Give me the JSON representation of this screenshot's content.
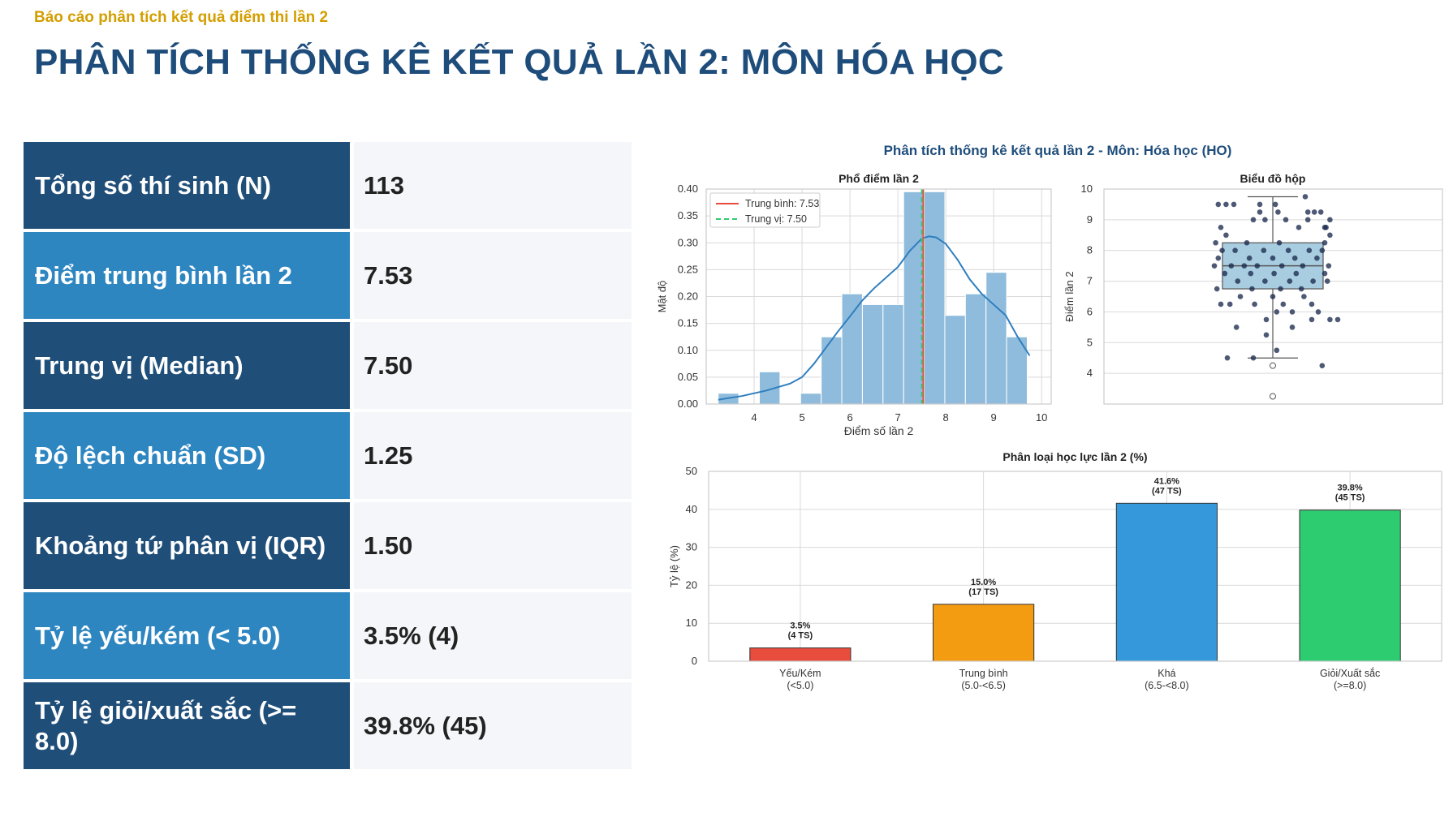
{
  "header": {
    "subtitle": "Báo cáo phân tích kết quả điểm thi lần 2",
    "title": "PHÂN TÍCH THỐNG KÊ KẾT QUẢ LẦN 2: MÔN HÓA HỌC"
  },
  "stats": [
    {
      "label": "Tổng số thí sinh (N)",
      "value": "113"
    },
    {
      "label": "Điểm trung bình lần 2",
      "value": "7.53"
    },
    {
      "label": "Trung vị (Median)",
      "value": "7.50"
    },
    {
      "label": "Độ lệch chuẩn (SD)",
      "value": "1.25"
    },
    {
      "label": "Khoảng tứ phân vị (IQR)",
      "value": "1.50"
    },
    {
      "label": "Tỷ lệ yếu/kém (< 5.0)",
      "value": "3.5% (4)"
    },
    {
      "label": "Tỷ lệ giỏi/xuất sắc (>= 8.0)",
      "value": "39.8% (45)"
    }
  ],
  "colors": {
    "title": "#1e4d7b",
    "subtitle": "#d39e00",
    "label_dark": "#1f4e79",
    "label_light": "#2e86c1",
    "hist_bar": "#8fbcdc",
    "kde": "#2f7ebf",
    "mean_line": "#e74c3c",
    "median_line": "#2ecc71",
    "box_fill": "#a8cce0",
    "points": "#1b2a4e"
  },
  "figure_title": "Phân tích thống kê kết quả lần 2 - Môn: Hóa học (HO)",
  "chart_data": [
    {
      "type": "histogram",
      "title": "Phổ điểm lần 2",
      "xlabel": "Điểm số lần 2",
      "ylabel": "Mật độ",
      "xlim": [
        3,
        10.2
      ],
      "ylim": [
        0,
        0.4
      ],
      "xticks": [
        4,
        5,
        6,
        7,
        8,
        9,
        10
      ],
      "yticks": [
        0.0,
        0.05,
        0.1,
        0.15,
        0.2,
        0.25,
        0.3,
        0.35,
        0.4
      ],
      "bins": [
        {
          "x0": 3.25,
          "x1": 3.68,
          "density": 0.02
        },
        {
          "x0": 3.68,
          "x1": 4.11,
          "density": 0.0
        },
        {
          "x0": 4.11,
          "x1": 4.54,
          "density": 0.06
        },
        {
          "x0": 4.54,
          "x1": 4.97,
          "density": 0.0
        },
        {
          "x0": 4.97,
          "x1": 5.4,
          "density": 0.02
        },
        {
          "x0": 5.4,
          "x1": 5.83,
          "density": 0.125
        },
        {
          "x0": 5.83,
          "x1": 6.26,
          "density": 0.205
        },
        {
          "x0": 6.26,
          "x1": 6.69,
          "density": 0.185
        },
        {
          "x0": 6.69,
          "x1": 7.12,
          "density": 0.185
        },
        {
          "x0": 7.12,
          "x1": 7.55,
          "density": 0.395
        },
        {
          "x0": 7.55,
          "x1": 7.98,
          "density": 0.395
        },
        {
          "x0": 7.98,
          "x1": 8.41,
          "density": 0.165
        },
        {
          "x0": 8.41,
          "x1": 8.84,
          "density": 0.205
        },
        {
          "x0": 8.84,
          "x1": 9.27,
          "density": 0.245
        },
        {
          "x0": 9.27,
          "x1": 9.7,
          "density": 0.125
        }
      ],
      "kde": {
        "x": [
          3.25,
          3.75,
          4.25,
          4.75,
          5.0,
          5.25,
          5.5,
          5.75,
          6.0,
          6.25,
          6.5,
          6.75,
          7.0,
          7.25,
          7.5,
          7.65,
          7.8,
          8.0,
          8.25,
          8.5,
          8.75,
          9.0,
          9.25,
          9.5,
          9.75
        ],
        "y": [
          0.008,
          0.015,
          0.025,
          0.038,
          0.05,
          0.075,
          0.105,
          0.135,
          0.163,
          0.192,
          0.215,
          0.235,
          0.255,
          0.285,
          0.308,
          0.312,
          0.31,
          0.298,
          0.268,
          0.232,
          0.205,
          0.185,
          0.165,
          0.125,
          0.09
        ]
      },
      "lines": [
        {
          "name": "Trung bình: 7.53",
          "x": 7.53,
          "color": "#e74c3c",
          "dash": false
        },
        {
          "name": "Trung vị: 7.50",
          "x": 7.5,
          "color": "#2ecc71",
          "dash": true
        }
      ],
      "legend": "top-left",
      "grid": true
    },
    {
      "type": "box",
      "title": "Biểu đồ hộp",
      "ylabel": "Điểm lần 2",
      "ylim": [
        3.0,
        10.0
      ],
      "yticks": [
        4,
        5,
        6,
        7,
        8,
        9,
        10
      ],
      "q1": 6.75,
      "median": 7.5,
      "q3": 8.25,
      "whisker_low": 4.5,
      "whisker_high": 9.75,
      "outliers": [
        4.25,
        3.25
      ],
      "points": [
        [
          -0.42,
          9.5
        ],
        [
          -0.36,
          9.5
        ],
        [
          -0.3,
          9.5
        ],
        [
          -0.1,
          9.25
        ],
        [
          0.04,
          9.25
        ],
        [
          0.32,
          9.25
        ],
        [
          0.27,
          9.25
        ],
        [
          0.37,
          9.25
        ],
        [
          -0.15,
          9.0
        ],
        [
          -0.06,
          9.0
        ],
        [
          0.1,
          9.0
        ],
        [
          0.27,
          9.0
        ],
        [
          0.44,
          9.0
        ],
        [
          0.25,
          9.75
        ],
        [
          0.02,
          9.5
        ],
        [
          -0.4,
          8.75
        ],
        [
          0.2,
          8.75
        ],
        [
          0.41,
          8.75
        ],
        [
          0.44,
          8.5
        ],
        [
          -0.36,
          8.5
        ],
        [
          0.4,
          8.25
        ],
        [
          -0.2,
          8.25
        ],
        [
          0.05,
          8.25
        ],
        [
          -0.44,
          8.25
        ],
        [
          -0.29,
          8.0
        ],
        [
          -0.07,
          8.0
        ],
        [
          0.12,
          8.0
        ],
        [
          0.28,
          8.0
        ],
        [
          -0.39,
          8.0
        ],
        [
          0.38,
          8.0
        ],
        [
          -0.42,
          7.75
        ],
        [
          -0.18,
          7.75
        ],
        [
          0.0,
          7.75
        ],
        [
          0.17,
          7.75
        ],
        [
          0.34,
          7.75
        ],
        [
          -0.32,
          7.5
        ],
        [
          -0.12,
          7.5
        ],
        [
          0.07,
          7.5
        ],
        [
          0.23,
          7.5
        ],
        [
          0.43,
          7.5
        ],
        [
          -0.45,
          7.5
        ],
        [
          -0.22,
          7.5
        ],
        [
          -0.37,
          7.25
        ],
        [
          -0.17,
          7.25
        ],
        [
          0.01,
          7.25
        ],
        [
          0.18,
          7.25
        ],
        [
          0.4,
          7.25
        ],
        [
          -0.27,
          7.0
        ],
        [
          -0.06,
          7.0
        ],
        [
          0.13,
          7.0
        ],
        [
          0.31,
          7.0
        ],
        [
          0.42,
          7.0
        ],
        [
          -0.43,
          6.75
        ],
        [
          -0.16,
          6.75
        ],
        [
          0.06,
          6.75
        ],
        [
          0.22,
          6.75
        ],
        [
          -0.25,
          6.5
        ],
        [
          0.0,
          6.5
        ],
        [
          0.24,
          6.5
        ],
        [
          -0.4,
          6.25
        ],
        [
          -0.33,
          6.25
        ],
        [
          0.3,
          6.25
        ],
        [
          -0.14,
          6.25
        ],
        [
          0.08,
          6.25
        ],
        [
          0.35,
          6.0
        ],
        [
          0.44,
          5.75
        ],
        [
          0.3,
          5.75
        ],
        [
          -0.05,
          5.75
        ],
        [
          0.15,
          6.0
        ],
        [
          0.5,
          5.75
        ],
        [
          0.15,
          5.5
        ],
        [
          -0.28,
          5.5
        ],
        [
          -0.05,
          5.25
        ],
        [
          0.38,
          4.25
        ],
        [
          -0.35,
          4.5
        ],
        [
          -0.15,
          4.5
        ],
        [
          0.03,
          6.0
        ],
        [
          0.03,
          4.75
        ],
        [
          0.4,
          8.75
        ],
        [
          -0.1,
          9.5
        ]
      ],
      "grid": true
    },
    {
      "type": "bar",
      "title": "Phân loại học lực lần 2 (%)",
      "xlabel": "",
      "ylabel": "Tỷ lệ (%)",
      "ylim": [
        0,
        50
      ],
      "yticks": [
        0,
        10,
        20,
        30,
        40,
        50
      ],
      "categories": [
        "Yếu/Kém\n(<5.0)",
        "Trung bình\n(5.0-<6.5)",
        "Khá\n(6.5-<8.0)",
        "Giỏi/Xuất sắc\n(>=8.0)"
      ],
      "values": [
        3.5,
        15.0,
        41.6,
        39.8
      ],
      "labels": [
        "3.5%\n(4 TS)",
        "15.0%\n(17 TS)",
        "41.6%\n(47 TS)",
        "39.8%\n(45 TS)"
      ],
      "colors": [
        "#e74c3c",
        "#f39c12",
        "#3498db",
        "#2ecc71"
      ],
      "grid": true
    }
  ]
}
